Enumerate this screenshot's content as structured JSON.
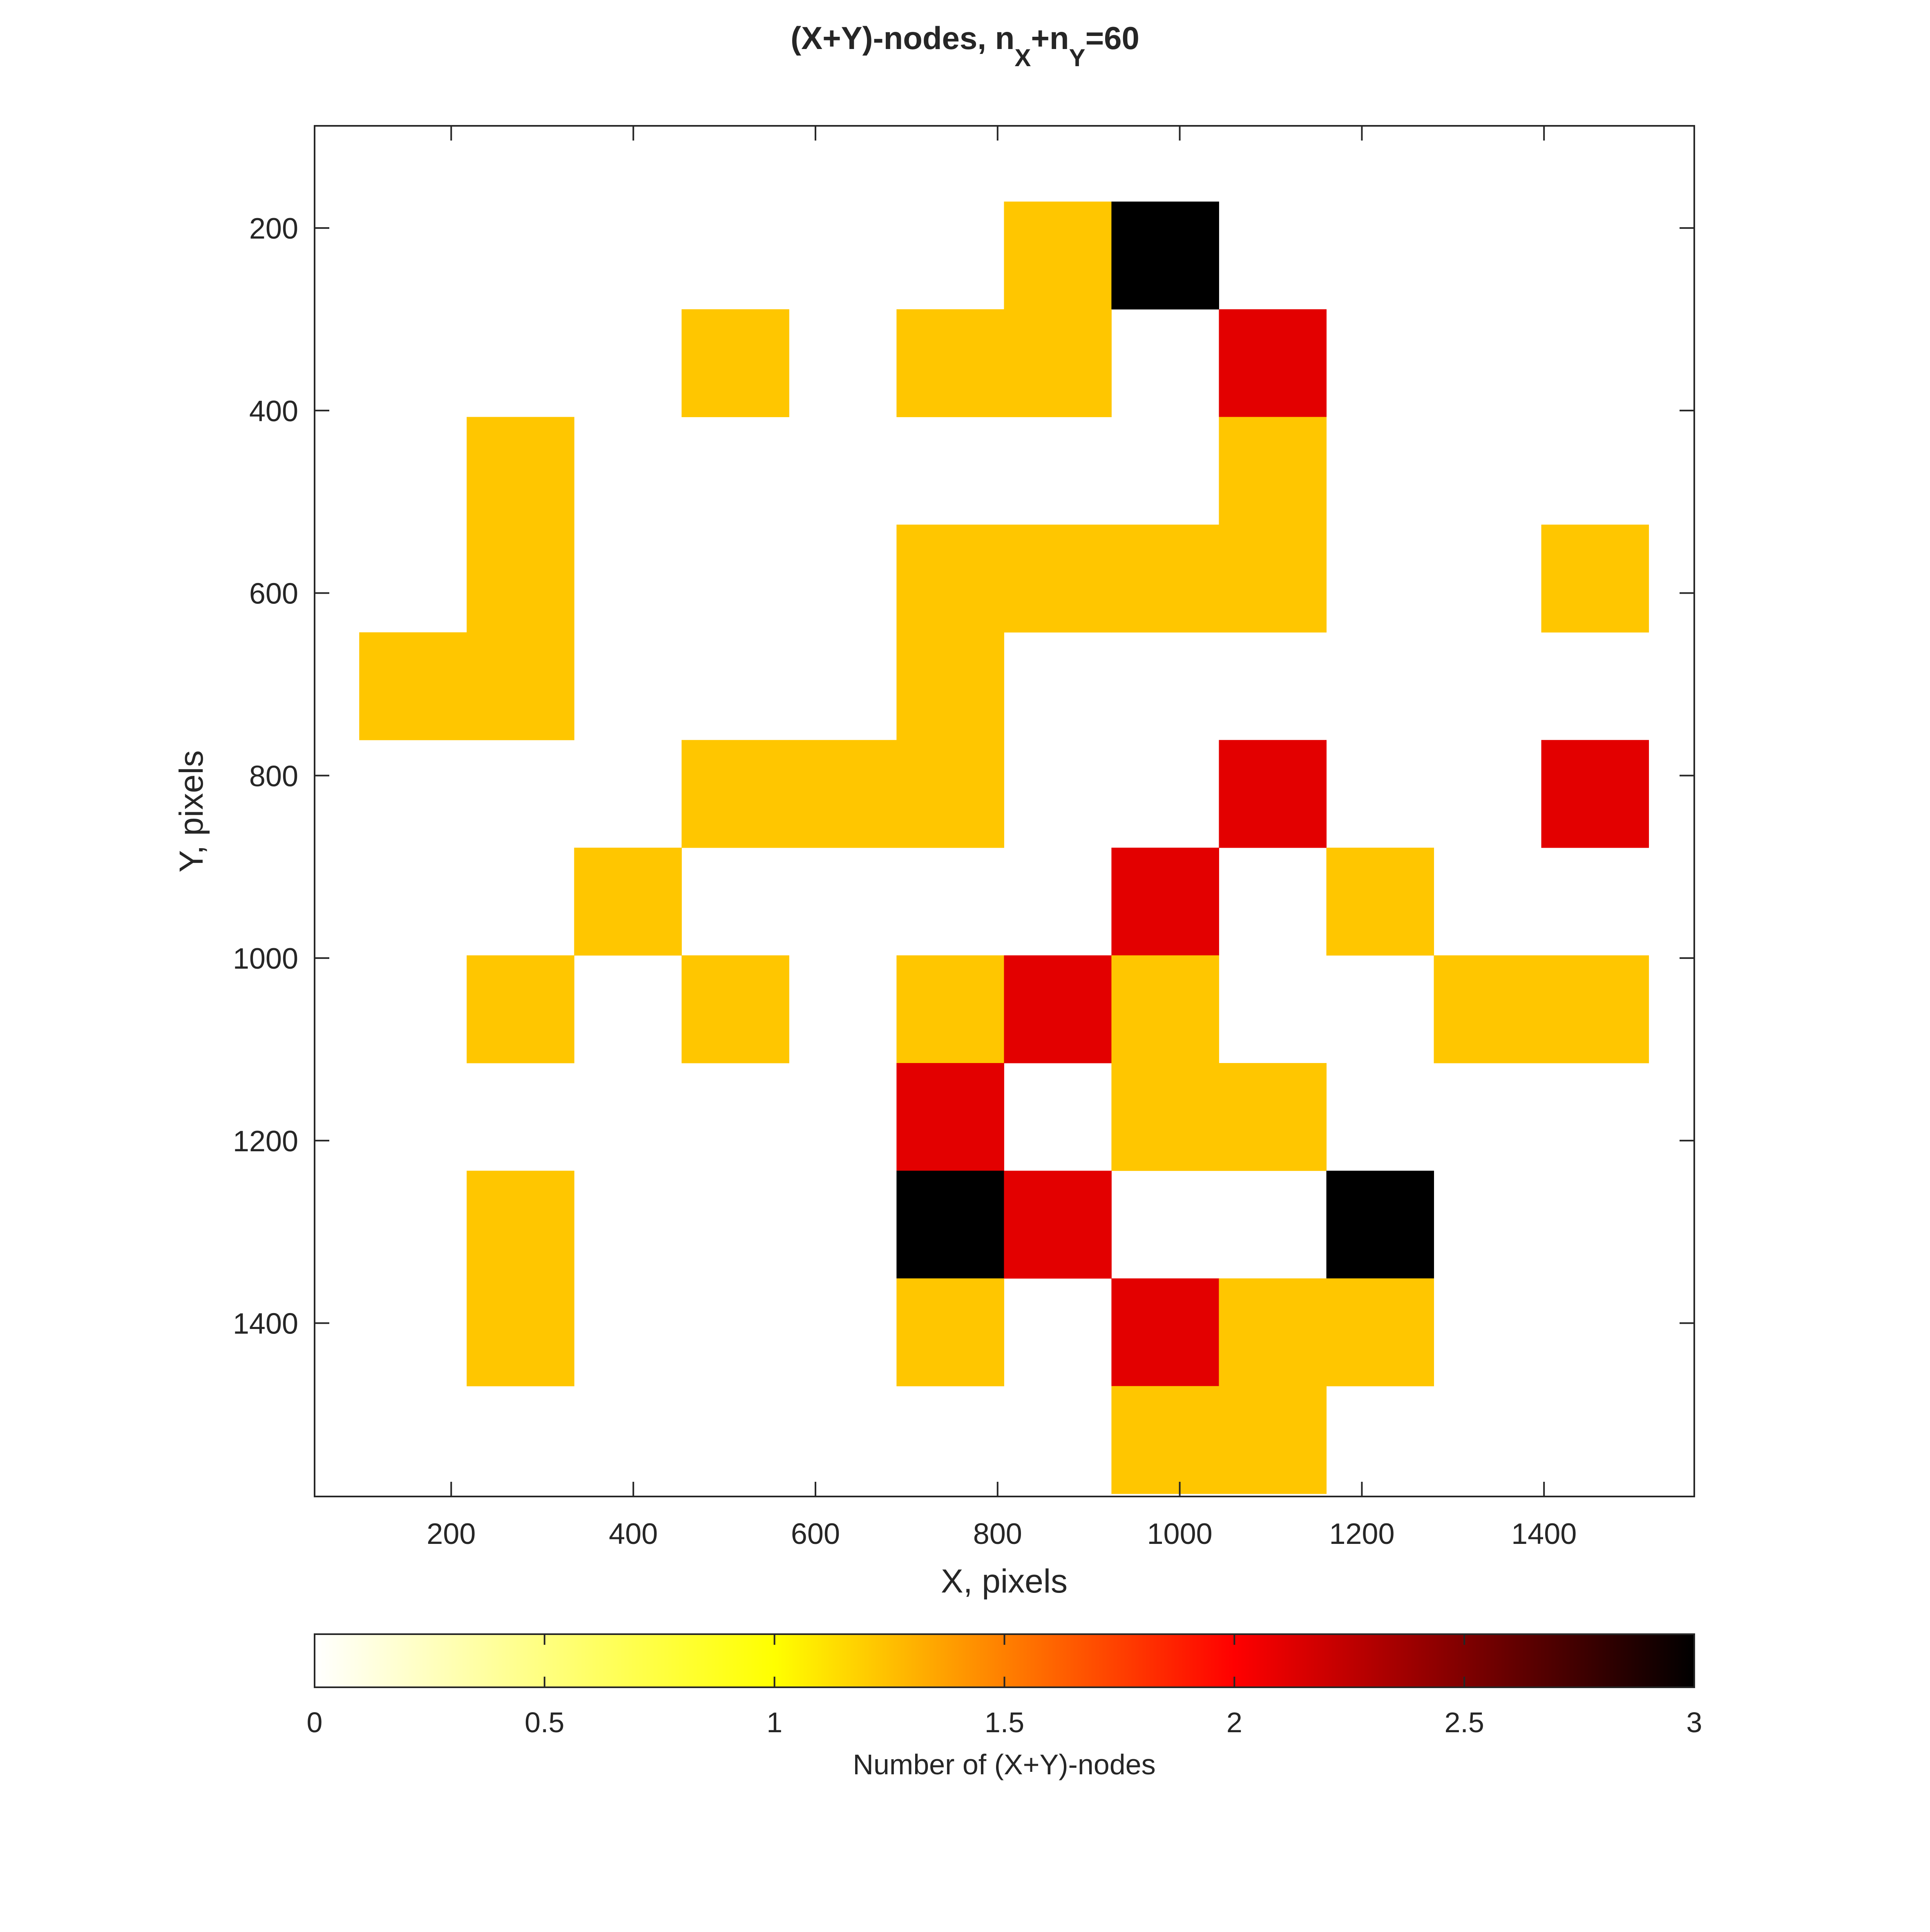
{
  "chart_data": {
    "type": "heatmap",
    "title": "(X+Y)-nodes, n_X+n_Y=60",
    "title_parts": {
      "prefix": "(X+Y)-nodes, n",
      "sub1": "X",
      "mid": "+n",
      "sub2": "Y",
      "suffix": "=60"
    },
    "xlabel": "X, pixels",
    "ylabel": "Y, pixels",
    "xlim": [
      50,
      1565
    ],
    "ylim": [
      1590,
      88
    ],
    "y_reversed": true,
    "x_ticks": [
      200,
      400,
      600,
      800,
      1000,
      1200,
      1400
    ],
    "y_ticks": [
      200,
      400,
      600,
      800,
      1000,
      1200,
      1400
    ],
    "cell_size": 118,
    "x_centers": [
      158,
      276,
      394,
      512,
      630,
      748,
      866,
      984,
      1102,
      1220,
      1338,
      1456
    ],
    "y_centers": [
      230,
      348,
      466,
      584,
      702,
      820,
      938,
      1056,
      1174,
      1292,
      1410,
      1528
    ],
    "values": [
      [
        0,
        0,
        0,
        0,
        0,
        0,
        1,
        3,
        0,
        0,
        0,
        0
      ],
      [
        0,
        0,
        0,
        1,
        0,
        1,
        1,
        0,
        2,
        0,
        0,
        0
      ],
      [
        0,
        1,
        0,
        0,
        0,
        0,
        0,
        0,
        1,
        0,
        0,
        0
      ],
      [
        0,
        1,
        0,
        0,
        0,
        1,
        1,
        1,
        1,
        0,
        0,
        1
      ],
      [
        1,
        1,
        0,
        0,
        0,
        1,
        0,
        0,
        0,
        0,
        0,
        0
      ],
      [
        0,
        0,
        0,
        1,
        1,
        1,
        0,
        0,
        2,
        0,
        0,
        2
      ],
      [
        0,
        0,
        1,
        0,
        0,
        0,
        0,
        2,
        0,
        1,
        0,
        0
      ],
      [
        0,
        1,
        0,
        1,
        0,
        1,
        2,
        1,
        0,
        0,
        1,
        1
      ],
      [
        0,
        0,
        0,
        0,
        0,
        2,
        0,
        1,
        1,
        0,
        0,
        0
      ],
      [
        0,
        1,
        0,
        0,
        0,
        3,
        2,
        0,
        0,
        3,
        0,
        0
      ],
      [
        0,
        1,
        0,
        0,
        0,
        1,
        0,
        2,
        1,
        1,
        0,
        0
      ],
      [
        0,
        0,
        0,
        0,
        0,
        0,
        0,
        1,
        1,
        0,
        0,
        0
      ]
    ],
    "colormap": {
      "name": "hot (reversed)",
      "stops": [
        "#ffffff",
        "#ffff00",
        "#ff0000",
        "#000000"
      ],
      "level_colors": {
        "1": "#ffc600",
        "2": "#e30000",
        "3": "#000000"
      }
    },
    "colorbar": {
      "label": "Number of (X+Y)-nodes",
      "range": [
        0,
        3
      ],
      "ticks": [
        "0",
        "0.5",
        "1",
        "1.5",
        "2",
        "2.5",
        "3"
      ],
      "location": "bottom"
    },
    "grid": false
  }
}
